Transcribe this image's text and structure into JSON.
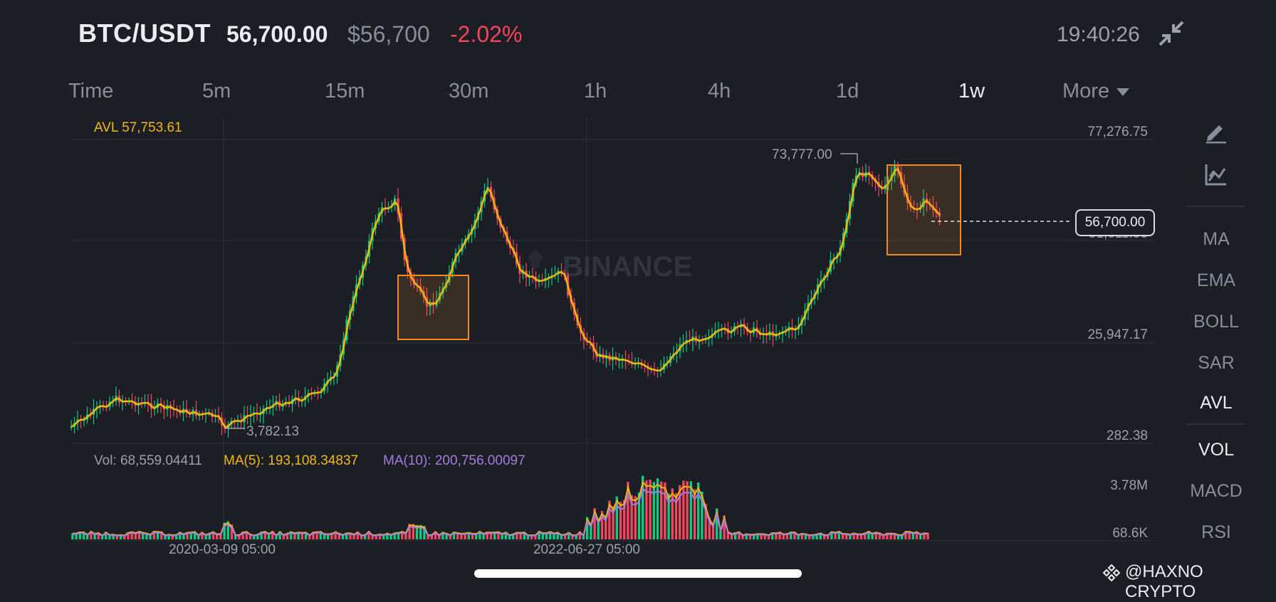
{
  "header": {
    "pair": "BTC/USDT",
    "last_price": "56,700.00",
    "fiat_price": "$56,700",
    "change_pct": "-2.02%",
    "time": "19:40:26",
    "collapse_icon": "collapse-arrows-icon"
  },
  "intervals": {
    "items": [
      "Time",
      "5m",
      "15m",
      "30m",
      "1h",
      "4h",
      "1d",
      "1w",
      "More"
    ],
    "active": "1w"
  },
  "toolbar": {
    "draw_icon": "pencil-ruler-icon",
    "indicator_icon": "chart-settings-icon",
    "main_indicators": [
      "MA",
      "EMA",
      "BOLL",
      "SAR",
      "AVL"
    ],
    "main_active": "AVL",
    "sub_indicators": [
      "VOL",
      "MACD",
      "RSI"
    ],
    "sub_active": "VOL"
  },
  "chart": {
    "avl_label": "AVL 57,753.61",
    "price_axis": [
      "77,276.75",
      "51,611.96",
      "25,947.17",
      "282.38"
    ],
    "high_marker": "73,777.00",
    "low_marker": "3,782.13",
    "current_price_tag": "56,700.00",
    "watermark": "BINANCE",
    "time_axis": [
      "2020-03-09 05:00",
      "2022-06-27 05:00"
    ],
    "volume_legend": {
      "vol": "Vol: 68,559.04411",
      "ma5": "MA(5): 193,108.34837",
      "ma10": "MA(10): 200,756.00097"
    },
    "volume_axis": [
      "3.78M",
      "68.6K"
    ],
    "colors": {
      "up": "#0ecb81",
      "down": "#f6465d",
      "avl_line": "#f0b90b",
      "ma10": "#a77bdc",
      "highlight_box": "#f08a24"
    }
  },
  "attribution": "@HAXNO CRYPTO"
}
